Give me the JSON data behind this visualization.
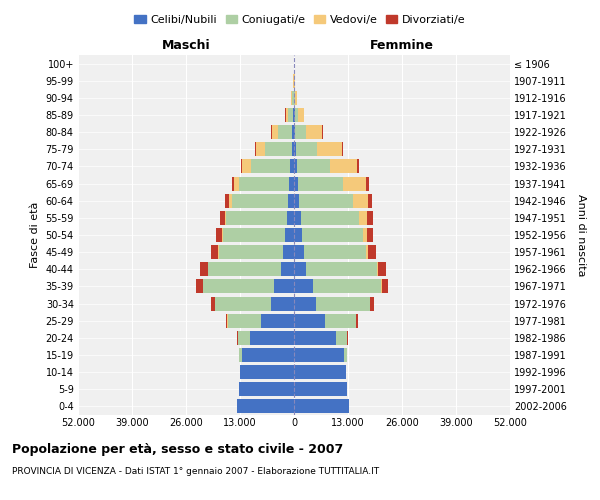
{
  "age_groups": [
    "0-4",
    "5-9",
    "10-14",
    "15-19",
    "20-24",
    "25-29",
    "30-34",
    "35-39",
    "40-44",
    "45-49",
    "50-54",
    "55-59",
    "60-64",
    "65-69",
    "70-74",
    "75-79",
    "80-84",
    "85-89",
    "90-94",
    "95-99",
    "100+"
  ],
  "birth_years": [
    "2002-2006",
    "1997-2001",
    "1992-1996",
    "1987-1991",
    "1982-1986",
    "1977-1981",
    "1972-1976",
    "1967-1971",
    "1962-1966",
    "1957-1961",
    "1952-1956",
    "1947-1951",
    "1942-1946",
    "1937-1941",
    "1932-1936",
    "1927-1931",
    "1922-1926",
    "1917-1921",
    "1912-1916",
    "1907-1911",
    "≤ 1906"
  ],
  "male_celibi": [
    13800,
    13200,
    13000,
    12500,
    10500,
    8000,
    5500,
    4800,
    3200,
    2600,
    2200,
    1800,
    1500,
    1200,
    900,
    600,
    400,
    200,
    120,
    60,
    20
  ],
  "male_coniugati": [
    5,
    20,
    100,
    800,
    3000,
    8000,
    13500,
    17000,
    17500,
    15500,
    14800,
    14500,
    13500,
    12000,
    9500,
    6500,
    3500,
    1200,
    300,
    50,
    10
  ],
  "male_vedovi": [
    0,
    1,
    2,
    5,
    15,
    30,
    50,
    80,
    100,
    150,
    250,
    400,
    600,
    1200,
    2000,
    2000,
    1500,
    600,
    200,
    30,
    5
  ],
  "male_divorziati": [
    0,
    2,
    5,
    20,
    100,
    400,
    1000,
    1600,
    1800,
    1800,
    1500,
    1200,
    900,
    600,
    400,
    200,
    100,
    50,
    20,
    10,
    2
  ],
  "female_celibi": [
    13200,
    12800,
    12500,
    12000,
    10000,
    7500,
    5200,
    4500,
    3000,
    2400,
    2000,
    1600,
    1200,
    900,
    700,
    500,
    300,
    150,
    80,
    40,
    15
  ],
  "female_coniugati": [
    3,
    15,
    80,
    700,
    2800,
    7500,
    13000,
    16500,
    17000,
    15000,
    14500,
    14000,
    13000,
    11000,
    8000,
    5000,
    2500,
    800,
    200,
    30,
    5
  ],
  "female_vedovi": [
    0,
    0,
    1,
    5,
    15,
    40,
    80,
    150,
    250,
    500,
    1000,
    2000,
    3500,
    5500,
    6500,
    6000,
    4000,
    1500,
    500,
    100,
    20
  ],
  "female_divorziati": [
    0,
    2,
    5,
    20,
    100,
    400,
    1000,
    1600,
    1800,
    1800,
    1600,
    1400,
    1000,
    700,
    500,
    300,
    150,
    60,
    20,
    10,
    2
  ],
  "color_celibi": "#4472C4",
  "color_coniugati": "#AECFA4",
  "color_vedovi": "#F5C97A",
  "color_divorziati": "#C0392B",
  "xlim": 52000,
  "title_bold": "Popolazione per età, sesso e stato civile - 2007",
  "subtitle": "PROVINCIA DI VICENZA - Dati ISTAT 1° gennaio 2007 - Elaborazione TUTTITALIA.IT",
  "ylabel_left": "Fasce di età",
  "ylabel_right": "Anni di nascita",
  "label_maschi": "Maschi",
  "label_femmine": "Femmine",
  "legend_labels": [
    "Celibi/Nubili",
    "Coniugati/e",
    "Vedovi/e",
    "Divorziati/e"
  ],
  "background_color": "#f0f0f0",
  "grid_color": "#ffffff"
}
